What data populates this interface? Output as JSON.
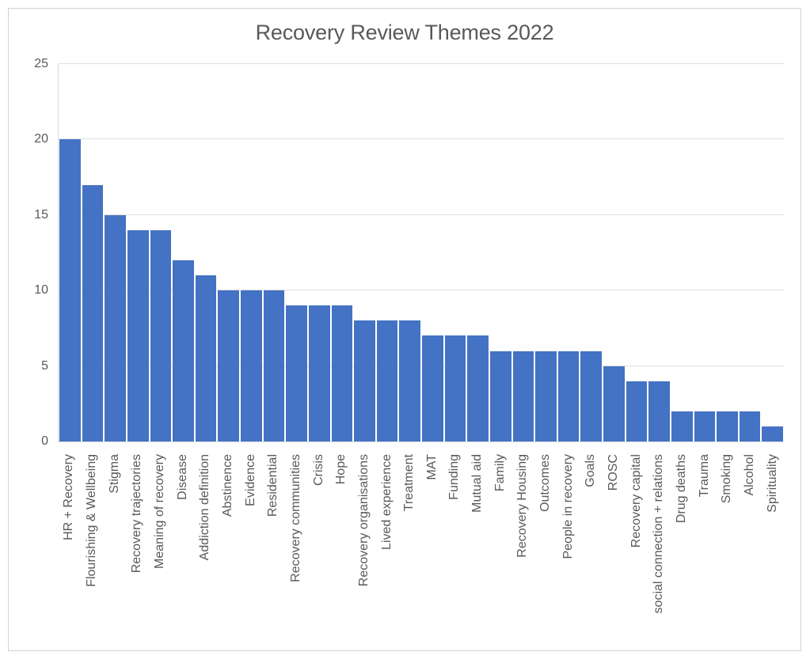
{
  "chart_data": {
    "type": "bar",
    "title": "Recovery Review Themes 2022",
    "categories": [
      "HR + Recovery",
      "Flourishing & Wellbeing",
      "Stigma",
      "Recovery trajectories",
      "Meaning of recovery",
      "Disease",
      "Addiction definition",
      "Abstinence",
      "Evidence",
      "Residential",
      "Recovery communities",
      "Crisis",
      "Hope",
      "Recovery organisations",
      "Lived experience",
      "Treatment",
      "MAT",
      "Funding",
      "Mutual aid",
      "Family",
      "Recovery Housing",
      "Outcomes",
      "People in recovery",
      "Goals",
      "ROSC",
      "Recovery capital",
      "social connection + relations",
      "Drug deaths",
      "Trauma",
      "Smoking",
      "Alcohol",
      "Spirituality"
    ],
    "values": [
      20,
      17,
      15,
      14,
      14,
      12,
      11,
      10,
      10,
      10,
      9,
      9,
      9,
      8,
      8,
      8,
      7,
      7,
      7,
      6,
      6,
      6,
      6,
      6,
      5,
      4,
      4,
      2,
      2,
      2,
      2,
      1
    ],
    "xlabel": "",
    "ylabel": "",
    "ylim": [
      0,
      25
    ],
    "yticks": [
      0,
      5,
      10,
      15,
      20,
      25
    ],
    "grid": true,
    "legend": "none",
    "bar_color": "#4472C4",
    "gridline_color": "#e0e0e0",
    "axis_text_color": "#595959",
    "title_color": "#595959"
  }
}
